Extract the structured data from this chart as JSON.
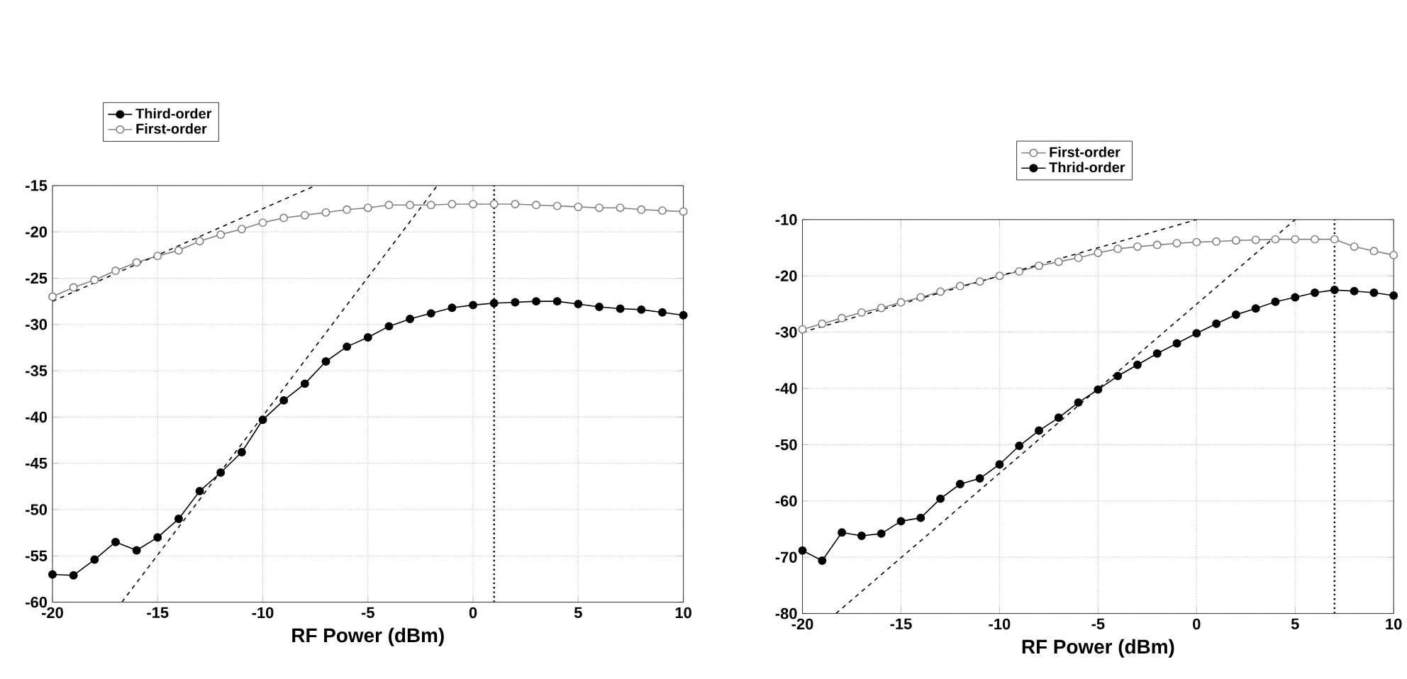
{
  "chart_data": [
    {
      "type": "line",
      "xlabel": "RF Power (dBm)",
      "x": [
        -20,
        -19,
        -18,
        -17,
        -16,
        -15,
        -14,
        -13,
        -12,
        -11,
        -10,
        -9,
        -8,
        -7,
        -6,
        -5,
        -4,
        -3,
        -2,
        -1,
        0,
        1,
        2,
        3,
        4,
        5,
        6,
        7,
        8,
        9,
        10
      ],
      "xlim": [
        -20,
        10
      ],
      "xticks": [
        -20,
        -15,
        -10,
        -5,
        0,
        5,
        10
      ],
      "ylim": [
        -60,
        -15
      ],
      "yticks": [
        -60,
        -55,
        -50,
        -45,
        -40,
        -35,
        -30,
        -25,
        -20,
        -15
      ],
      "grid": true,
      "legend": "top left",
      "marker": "circle",
      "series": [
        {
          "name": "Third-order",
          "color": "#000000",
          "values": [
            -57,
            -57.1,
            -55.4,
            -53.5,
            -54.4,
            -53,
            -51,
            -48,
            -46,
            -43.8,
            -40.3,
            -38.2,
            -36.4,
            -34,
            -32.4,
            -31.4,
            -30.2,
            -29.4,
            -28.8,
            -28.2,
            -27.9,
            -27.7,
            -27.6,
            -27.5,
            -27.5,
            -27.8,
            -28.1,
            -28.3,
            -28.4,
            -28.7,
            -29
          ]
        },
        {
          "name": "First-order",
          "color": "#808080",
          "values": [
            -27,
            -26,
            -25.2,
            -24.2,
            -23.3,
            -22.6,
            -22,
            -21,
            -20.3,
            -19.7,
            -19,
            -18.5,
            -18.2,
            -17.9,
            -17.6,
            -17.4,
            -17.1,
            -17.1,
            -17.1,
            -17,
            -17,
            -17,
            -17,
            -17.1,
            -17.2,
            -17.3,
            -17.4,
            -17.4,
            -17.6,
            -17.7,
            -17.8
          ]
        },
        {
          "type": "line",
          "x": [
            -20,
            -7.5
          ],
          "values": [
            -27.5,
            -15
          ],
          "color": "#000000",
          "line_style": "dashed",
          "marker": "none"
        },
        {
          "type": "line",
          "x": [
            -16.7,
            -1.7
          ],
          "values": [
            -60,
            -15
          ],
          "color": "#000000",
          "line_style": "dashed",
          "marker": "none"
        }
      ],
      "ref_lines": [
        {
          "axis": "x",
          "value": 1,
          "color": "#000000",
          "line_style": "dotted"
        }
      ]
    },
    {
      "type": "line",
      "xlabel": "RF Power (dBm)",
      "x": [
        -20,
        -19,
        -18,
        -17,
        -16,
        -15,
        -14,
        -13,
        -12,
        -11,
        -10,
        -9,
        -8,
        -7,
        -6,
        -5,
        -4,
        -3,
        -2,
        -1,
        0,
        1,
        2,
        3,
        4,
        5,
        6,
        7,
        8,
        9,
        10
      ],
      "xlim": [
        -20,
        10
      ],
      "xticks": [
        -20,
        -15,
        -10,
        -5,
        0,
        5,
        10
      ],
      "ylim": [
        -80,
        -10
      ],
      "yticks": [
        -80,
        -70,
        -60,
        -50,
        -40,
        -30,
        -20,
        -10
      ],
      "grid": true,
      "legend": "top",
      "marker": "circle",
      "series": [
        {
          "name": "First-order",
          "color": "#808080",
          "values": [
            -29.5,
            -28.5,
            -27.5,
            -26.5,
            -25.7,
            -24.7,
            -23.8,
            -22.8,
            -21.8,
            -21,
            -20,
            -19.2,
            -18.2,
            -17.5,
            -16.8,
            -15.9,
            -15.2,
            -14.8,
            -14.5,
            -14.2,
            -14,
            -13.9,
            -13.7,
            -13.6,
            -13.5,
            -13.5,
            -13.5,
            -13.5,
            -14.8,
            -15.6,
            -16.3
          ]
        },
        {
          "name": "Thrid-order",
          "color": "#000000",
          "values": [
            -68.8,
            -70.6,
            -65.6,
            -66.2,
            -65.8,
            -63.6,
            -63,
            -59.6,
            -57,
            -56,
            -53.5,
            -50.2,
            -47.5,
            -45.2,
            -42.5,
            -40.2,
            -37.8,
            -35.8,
            -33.8,
            -32,
            -30.2,
            -28.5,
            -26.9,
            -25.8,
            -24.6,
            -23.8,
            -23,
            -22.5,
            -22.7,
            -23,
            -23.5
          ]
        },
        {
          "type": "line",
          "x": [
            -20,
            0
          ],
          "values": [
            -30,
            -10
          ],
          "color": "#000000",
          "line_style": "dashed",
          "marker": "none"
        },
        {
          "type": "line",
          "x": [
            -18.3,
            5
          ],
          "values": [
            -80,
            -10
          ],
          "color": "#000000",
          "line_style": "dashed",
          "marker": "none"
        }
      ],
      "ref_lines": [
        {
          "axis": "x",
          "value": 7,
          "color": "#000000",
          "line_style": "dotted"
        }
      ]
    }
  ]
}
